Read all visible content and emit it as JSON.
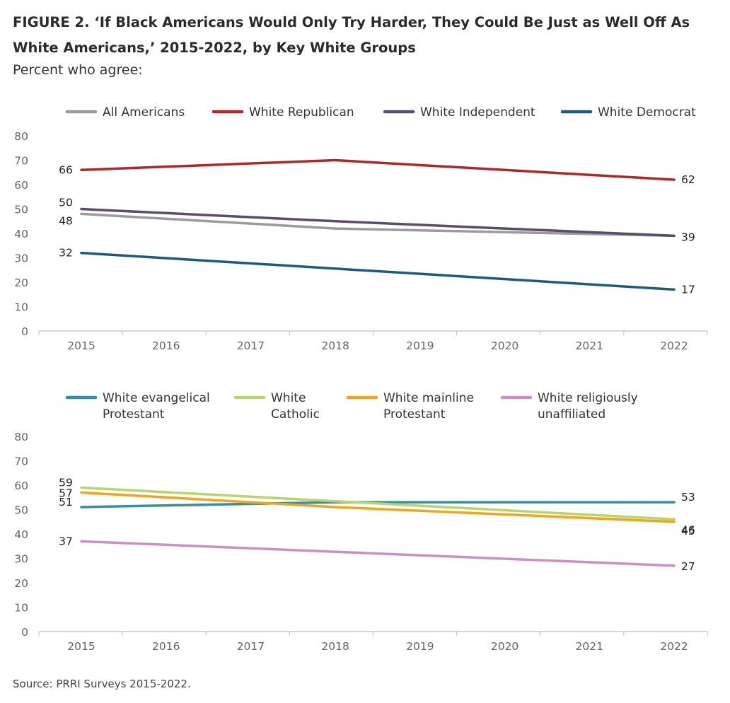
{
  "header": {
    "title": "FIGURE 2.  ‘If Black Americans Would Only Try Harder, They Could Be Just as Well Off As White Americans,’ 2015-2022, by Key White Groups",
    "subtitle": "Percent who agree:"
  },
  "footer": {
    "source": "Source: PRRI Surveys 2015-2022."
  },
  "chart_data": [
    {
      "type": "line",
      "x": [
        "2015",
        "2016",
        "2017",
        "2018",
        "2019",
        "2020",
        "2021",
        "2022"
      ],
      "ylim": [
        0,
        80
      ],
      "yticks": [
        "0",
        "10",
        "20",
        "30",
        "40",
        "50",
        "60",
        "70",
        "80"
      ],
      "grid": false,
      "legend": "top",
      "series": [
        {
          "name": "All Americans",
          "legend_lines": [
            "All Americans"
          ],
          "color": "#9b9b9b",
          "values": [
            48,
            null,
            null,
            42,
            null,
            null,
            null,
            39
          ],
          "labels": {
            "first": null,
            "last": null
          },
          "first_label_text": "48"
        },
        {
          "name": "White Republican",
          "legend_lines": [
            "White Republican"
          ],
          "color": "#b22528",
          "values": [
            66,
            null,
            null,
            70,
            null,
            null,
            null,
            62
          ],
          "first_label_text": "66",
          "last_label_text": "62"
        },
        {
          "name": "White Independent",
          "legend_lines": [
            "White Independent"
          ],
          "color": "#5e4a6c",
          "values": [
            50,
            null,
            null,
            45,
            null,
            null,
            null,
            39
          ],
          "first_label_text": "50",
          "last_label_text": "39"
        },
        {
          "name": "White Democrat",
          "legend_lines": [
            "White Democrat"
          ],
          "color": "#1d5a80",
          "values": [
            32,
            null,
            null,
            null,
            null,
            null,
            null,
            17
          ],
          "first_label_text": "32",
          "last_label_text": "17"
        }
      ]
    },
    {
      "type": "line",
      "x": [
        "2015",
        "2016",
        "2017",
        "2018",
        "2019",
        "2020",
        "2021",
        "2022"
      ],
      "ylim": [
        0,
        80
      ],
      "yticks": [
        "0",
        "10",
        "20",
        "30",
        "40",
        "50",
        "60",
        "70",
        "80"
      ],
      "grid": false,
      "legend": "top",
      "series": [
        {
          "name": "White evangelical Protestant",
          "legend_lines": [
            "White evangelical",
            "Protestant"
          ],
          "color": "#2f90a8",
          "values": [
            51,
            null,
            null,
            53,
            null,
            null,
            null,
            53
          ],
          "first_label_text": "51",
          "last_label_text": "53"
        },
        {
          "name": "White Catholic",
          "legend_lines": [
            "White",
            "Catholic"
          ],
          "color": "#b6d56a",
          "values": [
            59,
            null,
            null,
            null,
            null,
            null,
            null,
            46
          ],
          "first_label_text": "59",
          "last_label_text": "46"
        },
        {
          "name": "White mainline Protestant",
          "legend_lines": [
            "White mainline",
            "Protestant"
          ],
          "color": "#f3a51a",
          "values": [
            57,
            null,
            null,
            51,
            null,
            null,
            null,
            45
          ],
          "first_label_text": "57",
          "last_label_text": "45"
        },
        {
          "name": "White religiously unaffiliated",
          "legend_lines": [
            "White religiously",
            "unaffiliated"
          ],
          "color": "#cc8ec4",
          "values": [
            37,
            null,
            null,
            null,
            null,
            null,
            null,
            27
          ],
          "first_label_text": "37",
          "last_label_text": "27"
        }
      ]
    }
  ]
}
